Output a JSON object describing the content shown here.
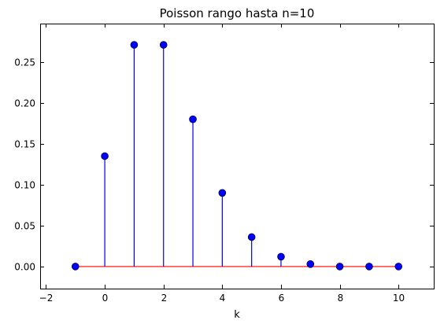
{
  "chart_data": {
    "type": "scatter",
    "style": "stem",
    "title": "Poisson rango hasta n=10",
    "xlabel": "k",
    "ylabel": "",
    "xlim": [
      -2.2,
      11.2
    ],
    "ylim": [
      -0.027,
      0.297
    ],
    "xticks": [
      -2,
      0,
      2,
      4,
      6,
      8,
      10
    ],
    "xtick_labels": [
      "−2",
      "0",
      "2",
      "4",
      "6",
      "8",
      "10"
    ],
    "yticks": [
      0.0,
      0.05,
      0.1,
      0.15,
      0.2,
      0.25
    ],
    "ytick_labels": [
      "0.00",
      "0.05",
      "0.10",
      "0.15",
      "0.20",
      "0.25"
    ],
    "grid": false,
    "baseline": 0,
    "colors": {
      "marker": "#0000ff",
      "stem": "#0000ff",
      "baseline": "#ff0000"
    },
    "series": [
      {
        "x": [
          -1,
          0,
          1,
          2,
          3,
          4,
          5,
          6,
          7,
          8,
          9,
          10
        ],
        "values": [
          0.0,
          0.135,
          0.271,
          0.271,
          0.18,
          0.09,
          0.036,
          0.012,
          0.003,
          0.0,
          0.0,
          0.0
        ]
      }
    ]
  }
}
